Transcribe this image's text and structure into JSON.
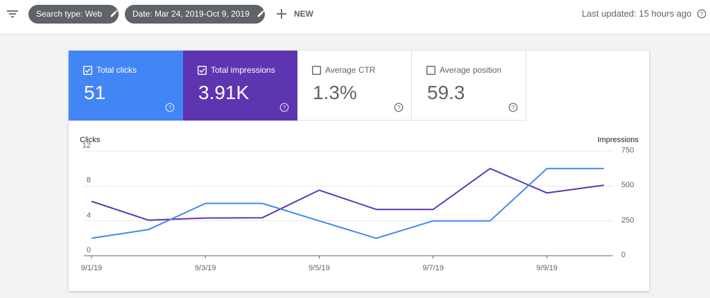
{
  "toolbar": {
    "filter_icon": "filter-list-icon",
    "search_chip": "Search type: Web",
    "date_chip": "Date: Mar 24, 2019-Oct 9, 2019",
    "new_label": "NEW",
    "last_updated": "Last updated: 15 hours ago"
  },
  "metrics": [
    {
      "label": "Total clicks",
      "value": "51",
      "checked": true,
      "color": "#4285f4"
    },
    {
      "label": "Total impressions",
      "value": "3.91K",
      "checked": true,
      "color": "#5e35b1"
    },
    {
      "label": "Average CTR",
      "value": "1.3%",
      "checked": false
    },
    {
      "label": "Average position",
      "value": "59.3",
      "checked": false
    }
  ],
  "chart_data": {
    "type": "line",
    "left_axis_label": "Clicks",
    "right_axis_label": "Impressions",
    "left_ylim": [
      0,
      12
    ],
    "right_ylim": [
      0,
      750
    ],
    "left_ticks": [
      "0",
      "4",
      "8",
      "12"
    ],
    "right_ticks": [
      "0",
      "250",
      "500",
      "750"
    ],
    "x_tick_labels": [
      "9/1/19",
      "9/3/19",
      "9/5/19",
      "9/7/19",
      "9/9/19"
    ],
    "x": [
      "9/1/19",
      "9/2/19",
      "9/3/19",
      "9/4/19",
      "9/5/19",
      "9/6/19",
      "9/7/19",
      "9/8/19",
      "9/9/19",
      "9/10/19"
    ],
    "series": [
      {
        "name": "Clicks",
        "axis": "left",
        "color": "#4285f4",
        "values": [
          2,
          3,
          6,
          6,
          4,
          2,
          4,
          4,
          10,
          10
        ]
      },
      {
        "name": "Impressions",
        "axis": "right",
        "color": "#5e35b1",
        "values": [
          390,
          255,
          270,
          272,
          470,
          332,
          332,
          625,
          450,
          505
        ]
      }
    ],
    "grid": true
  }
}
